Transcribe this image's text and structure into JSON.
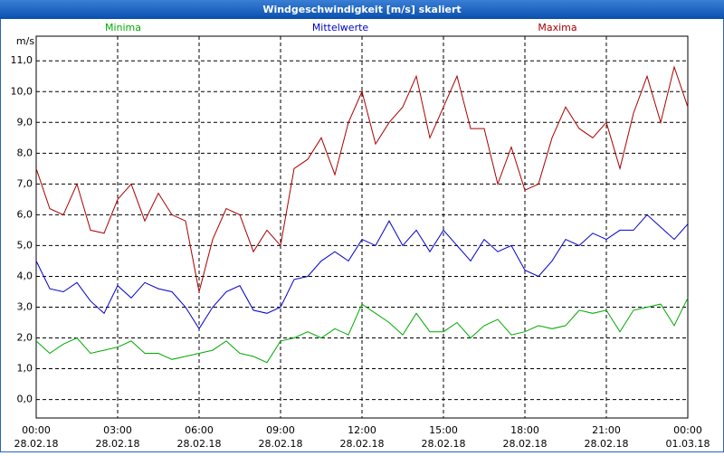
{
  "chart_data": {
    "type": "line",
    "title": "Windgeschwindigkeit [m/s] skaliert",
    "y_label": "m/s",
    "x": [
      0,
      0.5,
      1,
      1.5,
      2,
      2.5,
      3,
      3.5,
      4,
      4.5,
      5,
      5.5,
      6,
      6.5,
      7,
      7.5,
      8,
      8.5,
      9,
      9.5,
      10,
      10.5,
      11,
      11.5,
      12,
      12.5,
      13,
      13.5,
      14,
      14.5,
      15,
      15.5,
      16,
      16.5,
      17,
      17.5,
      18,
      18.5,
      19,
      19.5,
      20,
      20.5,
      21,
      21.5,
      22,
      22.5,
      23,
      23.5,
      24
    ],
    "series": [
      {
        "name": "Minima",
        "color": "#00aa00",
        "values": [
          1.9,
          1.5,
          1.8,
          2.0,
          1.5,
          1.6,
          1.7,
          1.9,
          1.5,
          1.5,
          1.3,
          1.4,
          1.5,
          1.6,
          1.9,
          1.5,
          1.4,
          1.2,
          1.9,
          2.0,
          2.2,
          2.0,
          2.3,
          2.1,
          3.1,
          2.8,
          2.5,
          2.1,
          2.8,
          2.2,
          2.2,
          2.5,
          2.0,
          2.4,
          2.6,
          2.1,
          2.2,
          2.4,
          2.3,
          2.4,
          2.9,
          2.8,
          2.9,
          2.2,
          2.9,
          3.0,
          3.1,
          2.4,
          3.3
        ]
      },
      {
        "name": "Mittelwerte",
        "color": "#0000cc",
        "values": [
          4.5,
          3.6,
          3.5,
          3.8,
          3.2,
          2.8,
          3.7,
          3.3,
          3.8,
          3.6,
          3.5,
          3.0,
          2.3,
          3.0,
          3.5,
          3.7,
          2.9,
          2.8,
          3.0,
          3.9,
          4.0,
          4.5,
          4.8,
          4.5,
          5.2,
          5.0,
          5.8,
          5.0,
          5.5,
          4.8,
          5.5,
          5.0,
          4.5,
          5.2,
          4.8,
          5.0,
          4.2,
          4.0,
          4.5,
          5.2,
          5.0,
          5.4,
          5.2,
          5.5,
          5.5,
          6.0,
          5.6,
          5.2,
          5.7
        ]
      },
      {
        "name": "Maxima",
        "color": "#aa0000",
        "values": [
          7.5,
          6.2,
          6.0,
          7.0,
          5.5,
          5.4,
          6.5,
          7.0,
          5.8,
          6.7,
          6.0,
          5.8,
          3.5,
          5.2,
          6.2,
          6.0,
          4.8,
          5.5,
          5.0,
          7.5,
          7.8,
          8.5,
          7.3,
          9.0,
          10.0,
          8.3,
          9.0,
          9.5,
          10.5,
          8.5,
          9.5,
          10.5,
          8.8,
          8.8,
          7.0,
          8.2,
          6.8,
          7.0,
          8.5,
          9.5,
          8.8,
          8.5,
          9.0,
          7.5,
          9.3,
          10.5,
          9.0,
          10.8,
          9.5
        ]
      }
    ],
    "xlim": [
      0,
      24
    ],
    "xticks": [
      {
        "value": 0,
        "label": [
          "00:00",
          "28.02.18"
        ]
      },
      {
        "value": 3,
        "label": [
          "03:00",
          "28.02.18"
        ]
      },
      {
        "value": 6,
        "label": [
          "06:00",
          "28.02.18"
        ]
      },
      {
        "value": 9,
        "label": [
          "09:00",
          "28.02.18"
        ]
      },
      {
        "value": 12,
        "label": [
          "12:00",
          "28.02.18"
        ]
      },
      {
        "value": 15,
        "label": [
          "15:00",
          "28.02.18"
        ]
      },
      {
        "value": 18,
        "label": [
          "18:00",
          "28.02.18"
        ]
      },
      {
        "value": 21,
        "label": [
          "21:00",
          "28.02.18"
        ]
      },
      {
        "value": 24,
        "label": [
          "00:00",
          "01.03.18"
        ]
      }
    ],
    "ylim": [
      -0.6,
      11.8
    ],
    "yticks": [
      {
        "value": 0,
        "label": "0,0"
      },
      {
        "value": 1,
        "label": "1,0"
      },
      {
        "value": 2,
        "label": "2,0"
      },
      {
        "value": 3,
        "label": "3,0"
      },
      {
        "value": 4,
        "label": "4,0"
      },
      {
        "value": 5,
        "label": "5,0"
      },
      {
        "value": 6,
        "label": "6,0"
      },
      {
        "value": 7,
        "label": "7,0"
      },
      {
        "value": 8,
        "label": "8,0"
      },
      {
        "value": 9,
        "label": "9,0"
      },
      {
        "value": 10,
        "label": "10,0"
      },
      {
        "value": 11,
        "label": "11,0"
      }
    ],
    "grid": true
  }
}
